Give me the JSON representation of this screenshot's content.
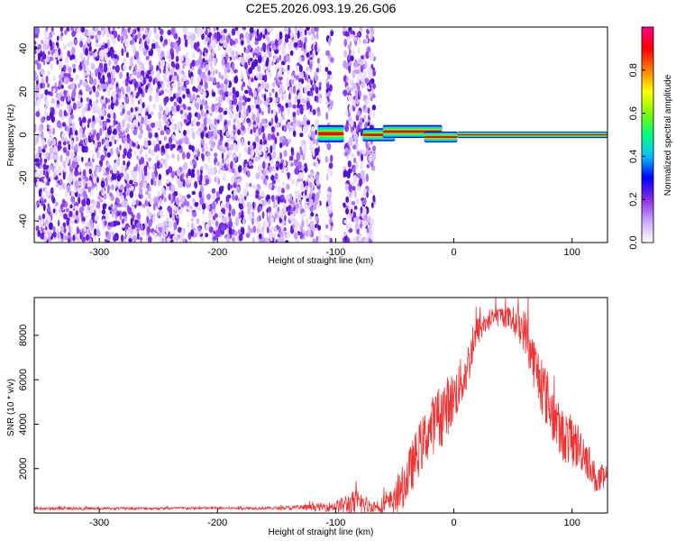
{
  "title": "C2E5.2026.093.19.26.G06",
  "chart_data": [
    {
      "type": "heatmap",
      "xlabel": "Height of straight line (km)",
      "ylabel": "Frequency (Hz)",
      "xlim": [
        -355,
        130
      ],
      "ylim": [
        -50,
        50
      ],
      "xticks": [
        -300,
        -200,
        -100,
        0,
        100
      ],
      "yticks": [
        -40,
        -20,
        0,
        20,
        40
      ],
      "xtick_labels": [
        "-300",
        "-200",
        "-100",
        "0",
        "100"
      ],
      "ytick_labels": [
        "-40",
        "-20",
        "0",
        "20",
        "40"
      ],
      "noise_regions": [
        [
          -355,
          -113
        ],
        [
          -108,
          -103
        ],
        [
          -93,
          -67
        ]
      ],
      "signal_segments": [
        {
          "x_start": -115,
          "x_end": -93,
          "center_hz": 0.5,
          "half_width_hz": 4
        },
        {
          "x_start": -77,
          "x_end": -50,
          "center_hz": 0,
          "half_width_hz": 3
        },
        {
          "x_start": -60,
          "x_end": -10,
          "center_hz": 1.5,
          "half_width_hz": 3
        },
        {
          "x_start": -25,
          "x_end": 3,
          "center_hz": -1,
          "half_width_hz": 2.5
        },
        {
          "x_start": 3,
          "x_end": 130,
          "center_hz": 0,
          "half_width_hz": 1.5
        }
      ],
      "colorbar": {
        "label": "Normalized spectral amplitude",
        "range": [
          0,
          1
        ],
        "ticks": [
          0.0,
          0.2,
          0.4,
          0.6,
          0.8
        ],
        "tick_labels": [
          "0.0",
          "0.2",
          "0.4",
          "0.6",
          "0.8"
        ],
        "colors": [
          "#ffffff",
          "#c9a6ff",
          "#8a2be2",
          "#0000ff",
          "#00c0ff",
          "#00ff80",
          "#80ff00",
          "#ffff00",
          "#ff8000",
          "#ff0000",
          "#ff0080"
        ]
      }
    },
    {
      "type": "line",
      "xlabel": "Height of straight line (km)",
      "ylabel": "SNR (10 * v/v)",
      "xlim": [
        -355,
        130
      ],
      "ylim": [
        0,
        9700
      ],
      "xticks": [
        -300,
        -200,
        -100,
        0,
        100
      ],
      "yticks": [
        2000,
        4000,
        6000,
        8000
      ],
      "xtick_labels": [
        "-300",
        "-200",
        "-100",
        "0",
        "100"
      ],
      "ytick_labels": [
        "2000",
        "4000",
        "6000",
        "8000"
      ],
      "series": [
        {
          "name": "SNR",
          "color": "#ee3333",
          "x": [
            -355,
            -300,
            -250,
            -200,
            -150,
            -120,
            -100,
            -90,
            -80,
            -70,
            -60,
            -50,
            -40,
            -30,
            -20,
            -10,
            0,
            10,
            20,
            30,
            40,
            50,
            60,
            70,
            80,
            90,
            100,
            110,
            120,
            130
          ],
          "y": [
            200,
            200,
            210,
            220,
            220,
            250,
            300,
            400,
            400,
            300,
            350,
            500,
            1500,
            2800,
            3800,
            4500,
            5200,
            6300,
            8200,
            8700,
            8900,
            8700,
            8200,
            6400,
            5000,
            3600,
            3200,
            2800,
            1500,
            1500
          ],
          "noise_amplitude": [
            60,
            60,
            60,
            60,
            70,
            150,
            250,
            500,
            700,
            250,
            400,
            700,
            1100,
            1200,
            1300,
            1500,
            1200,
            1100,
            700,
            500,
            450,
            600,
            1000,
            1300,
            1400,
            1200,
            1200,
            1000,
            700,
            700
          ]
        }
      ]
    }
  ]
}
